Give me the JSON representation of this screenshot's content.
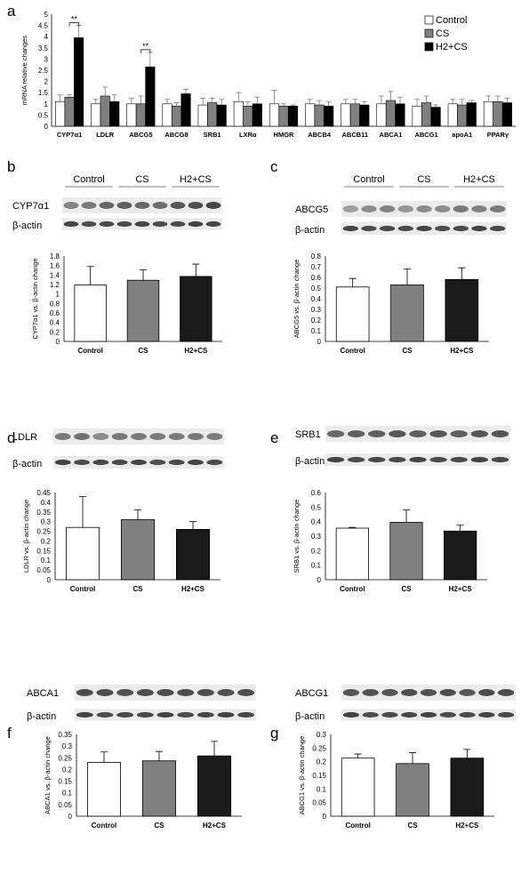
{
  "chart_data": [
    {
      "panel": "a",
      "type": "bar",
      "ylabel": "mRNA relative changes",
      "ylim": [
        0,
        5
      ],
      "yticks": [
        0,
        0.5,
        1,
        1.5,
        2,
        2.5,
        3,
        3.5,
        4,
        4.5,
        5
      ],
      "categories": [
        "CYP7α1",
        "LDLR",
        "ABCG5",
        "ABCG8",
        "SRB1",
        "LXRα",
        "HMGR",
        "ABCB4",
        "ABCB11",
        "ABCA1",
        "ABCG1",
        "apoA1",
        "PPARγ"
      ],
      "series": [
        {
          "name": "Control",
          "color": "#ffffff",
          "values": [
            1.1,
            1.0,
            1.0,
            1.0,
            0.95,
            1.1,
            1.0,
            1.0,
            1.0,
            1.0,
            0.9,
            1.0,
            1.1
          ],
          "errors": [
            0.3,
            0.2,
            0.25,
            0.2,
            0.3,
            0.4,
            0.6,
            0.2,
            0.2,
            0.35,
            0.3,
            0.2,
            0.25
          ]
        },
        {
          "name": "CS",
          "color": "#808080",
          "values": [
            1.3,
            1.35,
            1.0,
            0.9,
            1.05,
            0.9,
            0.9,
            0.95,
            1.0,
            1.15,
            1.05,
            0.95,
            1.1
          ],
          "errors": [
            0.1,
            0.4,
            0.35,
            0.15,
            0.2,
            0.2,
            0.1,
            0.2,
            0.2,
            0.4,
            0.3,
            0.25,
            0.25
          ]
        },
        {
          "name": "H2+CS",
          "color": "#000000",
          "values": [
            3.95,
            1.1,
            2.65,
            1.45,
            0.95,
            1.0,
            0.9,
            0.9,
            0.95,
            1.0,
            0.85,
            1.05,
            1.05
          ],
          "errors": [
            0.55,
            0.3,
            0.65,
            0.2,
            0.25,
            0.3,
            0.05,
            0.2,
            0.15,
            0.3,
            0.1,
            0.1,
            0.2
          ]
        }
      ],
      "significance": [
        {
          "category": "CYP7α1",
          "label": "**"
        },
        {
          "category": "ABCG5",
          "label": "**"
        }
      ]
    },
    {
      "panel": "b",
      "type": "bar",
      "blot_protein": "CYP7α1",
      "loading_control": "β-actin",
      "ylabel": "CYP7α1 vs. β-actin change",
      "ylim": [
        0,
        1.8
      ],
      "yticks": [
        0,
        0.2,
        0.4,
        0.6,
        0.8,
        1,
        1.2,
        1.4,
        1.6,
        1.8
      ],
      "categories": [
        "Control",
        "CS",
        "H2+CS"
      ],
      "values": [
        1.19,
        1.29,
        1.37
      ],
      "errors": [
        0.39,
        0.22,
        0.26
      ],
      "colors": [
        "#ffffff",
        "#808080",
        "#1a1a1a"
      ]
    },
    {
      "panel": "c",
      "type": "bar",
      "blot_protein": "ABCG5",
      "loading_control": "β-actin",
      "ylabel": "ABCG5 vs. β-actin change",
      "ylim": [
        0,
        0.8
      ],
      "yticks": [
        0,
        0.1,
        0.2,
        0.3,
        0.4,
        0.5,
        0.6,
        0.7,
        0.8
      ],
      "categories": [
        "Control",
        "CS",
        "H2+CS"
      ],
      "values": [
        0.51,
        0.53,
        0.58
      ],
      "errors": [
        0.08,
        0.15,
        0.11
      ],
      "colors": [
        "#ffffff",
        "#808080",
        "#1a1a1a"
      ]
    },
    {
      "panel": "d",
      "type": "bar",
      "blot_protein": "LDLR",
      "loading_control": "β-actin",
      "ylabel": "LDLR vs. β-actin change",
      "ylim": [
        0,
        0.45
      ],
      "yticks": [
        0,
        0.05,
        0.1,
        0.15,
        0.2,
        0.25,
        0.3,
        0.35,
        0.4,
        0.45
      ],
      "categories": [
        "Control",
        "CS",
        "H2+CS"
      ],
      "values": [
        0.27,
        0.31,
        0.26
      ],
      "errors": [
        0.16,
        0.05,
        0.04
      ],
      "colors": [
        "#ffffff",
        "#808080",
        "#1a1a1a"
      ]
    },
    {
      "panel": "e",
      "type": "bar",
      "blot_protein": "SRB1",
      "loading_control": "β-actin",
      "ylabel": "SRB1 vs. β-actin change",
      "ylim": [
        0,
        0.6
      ],
      "yticks": [
        0,
        0.1,
        0.2,
        0.3,
        0.4,
        0.5,
        0.6
      ],
      "categories": [
        "Control",
        "CS",
        "H2+CS"
      ],
      "values": [
        0.355,
        0.395,
        0.335
      ],
      "errors": [
        0.005,
        0.085,
        0.04
      ],
      "colors": [
        "#ffffff",
        "#808080",
        "#1a1a1a"
      ]
    },
    {
      "panel": "f",
      "type": "bar",
      "blot_protein": "ABCA1",
      "loading_control": "β-actin",
      "ylabel": "ABCA1 vs. β-actin change",
      "ylim": [
        0,
        0.35
      ],
      "yticks": [
        0,
        0.05,
        0.1,
        0.15,
        0.2,
        0.25,
        0.3,
        0.35
      ],
      "categories": [
        "Control",
        "CS",
        "H2+CS"
      ],
      "values": [
        0.23,
        0.237,
        0.258
      ],
      "errors": [
        0.045,
        0.04,
        0.062
      ],
      "colors": [
        "#ffffff",
        "#808080",
        "#1a1a1a"
      ]
    },
    {
      "panel": "g",
      "type": "bar",
      "blot_protein": "ABCG1",
      "loading_control": "β-actin",
      "ylabel": "ABCG1 vs. β-actin change",
      "ylim": [
        0,
        0.3
      ],
      "yticks": [
        0,
        0.05,
        0.1,
        0.15,
        0.2,
        0.25,
        0.3
      ],
      "categories": [
        "Control",
        "CS",
        "H2+CS"
      ],
      "values": [
        0.213,
        0.193,
        0.213
      ],
      "errors": [
        0.015,
        0.04,
        0.032
      ],
      "colors": [
        "#ffffff",
        "#808080",
        "#1a1a1a"
      ]
    }
  ],
  "blot_groups": [
    "Control",
    "CS",
    "H2+CS"
  ]
}
